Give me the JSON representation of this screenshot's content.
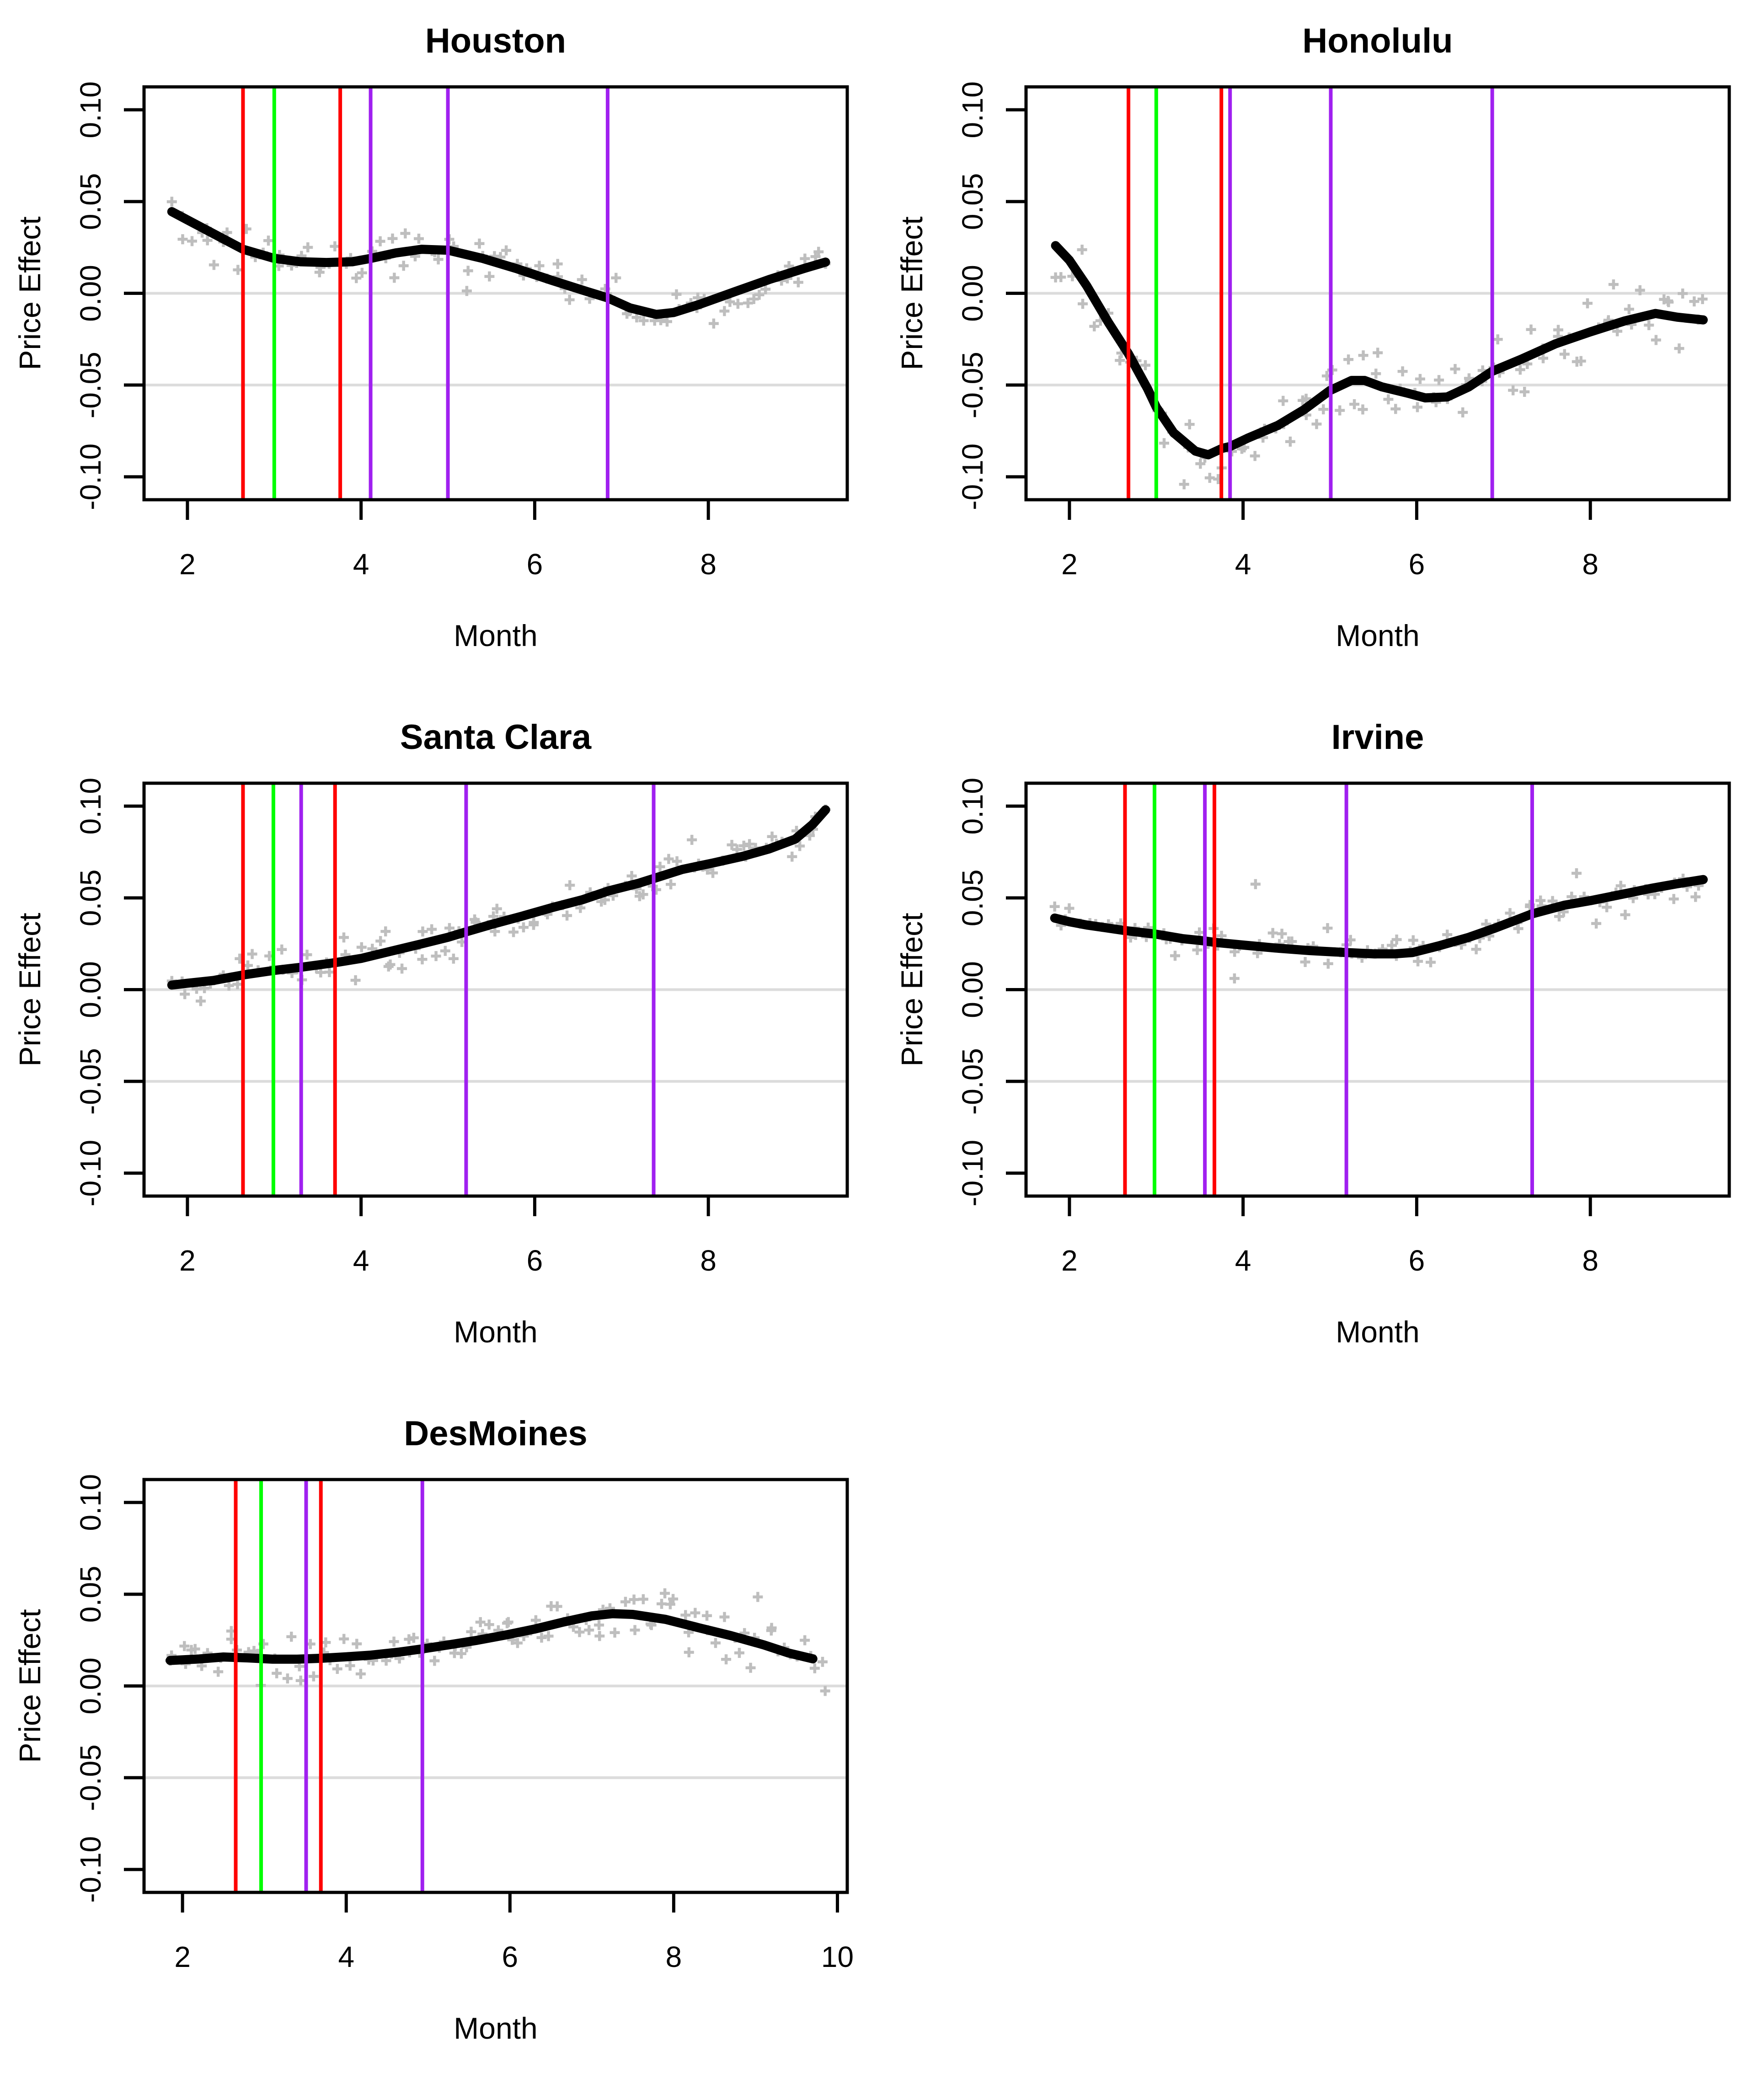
{
  "figure": {
    "rows": 3,
    "cols": 2,
    "background": "#ffffff"
  },
  "axes": {
    "xlabel": "Month",
    "ylabel": "Price Effect",
    "ytick_values": [
      0.1,
      0.05,
      0.0,
      -0.05,
      -0.1
    ],
    "ytick_labels": [
      "0.10",
      "0.05",
      "0.00",
      "-0.05",
      "-0.10"
    ],
    "ylim": [
      -0.1125,
      0.1125
    ],
    "gridlines_y": [
      0.0,
      -0.05
    ],
    "grid_on": true
  },
  "colors": {
    "curve": "#000000",
    "scatter": "#BEBEBE",
    "grid": "#DCDCDC",
    "axis": "#000000",
    "red": "#FF0000",
    "green": "#00FF00",
    "purple": "#A020F0"
  },
  "chart_data": [
    {
      "type": "line",
      "title": "Houston",
      "xlabel": "Month",
      "ylabel": "Price Effect",
      "xlim": [
        1.5,
        9.6
      ],
      "xticks": [
        2,
        4,
        6,
        8
      ],
      "xtick_labels": [
        "2",
        "4",
        "6",
        "8"
      ],
      "vlines": [
        {
          "x": 2.64,
          "color": "red"
        },
        {
          "x": 3.0,
          "color": "green"
        },
        {
          "x": 3.76,
          "color": "red"
        },
        {
          "x": 4.11,
          "color": "purple"
        },
        {
          "x": 5.0,
          "color": "purple"
        },
        {
          "x": 6.84,
          "color": "purple"
        }
      ],
      "curve": [
        [
          1.82,
          0.0445
        ],
        [
          2.0,
          0.04
        ],
        [
          2.3,
          0.0325
        ],
        [
          2.64,
          0.024
        ],
        [
          3.0,
          0.019
        ],
        [
          3.3,
          0.0172
        ],
        [
          3.6,
          0.0168
        ],
        [
          3.9,
          0.0172
        ],
        [
          4.11,
          0.019
        ],
        [
          4.4,
          0.022
        ],
        [
          4.7,
          0.024
        ],
        [
          5.0,
          0.0235
        ],
        [
          5.4,
          0.019
        ],
        [
          5.8,
          0.0133
        ],
        [
          6.2,
          0.007
        ],
        [
          6.6,
          0.001
        ],
        [
          6.84,
          -0.0025
        ],
        [
          7.1,
          -0.008
        ],
        [
          7.4,
          -0.0115
        ],
        [
          7.6,
          -0.0105
        ],
        [
          7.9,
          -0.006
        ],
        [
          8.3,
          0.0008
        ],
        [
          8.7,
          0.0075
        ],
        [
          9.1,
          0.0135
        ],
        [
          9.35,
          0.017
        ]
      ],
      "scatter": {
        "seed": 101,
        "n": 100,
        "sd": 0.006,
        "x_range": [
          1.82,
          9.35
        ]
      }
    },
    {
      "type": "line",
      "title": "Honolulu",
      "xlabel": "Month",
      "ylabel": "Price Effect",
      "xlim": [
        1.5,
        9.6
      ],
      "xticks": [
        2,
        4,
        6,
        8
      ],
      "xtick_labels": [
        "2",
        "4",
        "6",
        "8"
      ],
      "vlines": [
        {
          "x": 2.68,
          "color": "red"
        },
        {
          "x": 3.0,
          "color": "green"
        },
        {
          "x": 3.75,
          "color": "red"
        },
        {
          "x": 3.85,
          "color": "purple"
        },
        {
          "x": 5.01,
          "color": "purple"
        },
        {
          "x": 6.87,
          "color": "purple"
        }
      ],
      "curve": [
        [
          1.84,
          0.026
        ],
        [
          2.0,
          0.018
        ],
        [
          2.2,
          0.004
        ],
        [
          2.45,
          -0.016
        ],
        [
          2.68,
          -0.033
        ],
        [
          2.9,
          -0.052
        ],
        [
          3.0,
          -0.062
        ],
        [
          3.2,
          -0.076
        ],
        [
          3.45,
          -0.086
        ],
        [
          3.6,
          -0.088
        ],
        [
          3.76,
          -0.0845
        ],
        [
          3.85,
          -0.0835
        ],
        [
          4.05,
          -0.079
        ],
        [
          4.4,
          -0.072
        ],
        [
          4.7,
          -0.0635
        ],
        [
          5.0,
          -0.053
        ],
        [
          5.25,
          -0.0475
        ],
        [
          5.4,
          -0.0475
        ],
        [
          5.6,
          -0.051
        ],
        [
          5.9,
          -0.0545
        ],
        [
          6.1,
          -0.057
        ],
        [
          6.35,
          -0.0565
        ],
        [
          6.6,
          -0.051
        ],
        [
          6.87,
          -0.0425
        ],
        [
          7.2,
          -0.036
        ],
        [
          7.6,
          -0.0275
        ],
        [
          8.0,
          -0.021
        ],
        [
          8.4,
          -0.015
        ],
        [
          8.75,
          -0.011
        ],
        [
          9.0,
          -0.013
        ],
        [
          9.3,
          -0.0145
        ]
      ],
      "scatter": {
        "seed": 202,
        "n": 105,
        "sd": 0.009,
        "x_range": [
          1.84,
          9.3
        ]
      }
    },
    {
      "type": "line",
      "title": "Santa Clara",
      "xlabel": "Month",
      "ylabel": "Price Effect",
      "xlim": [
        1.5,
        9.6
      ],
      "xticks": [
        2,
        4,
        6,
        8
      ],
      "xtick_labels": [
        "2",
        "4",
        "6",
        "8"
      ],
      "vlines": [
        {
          "x": 2.64,
          "color": "red"
        },
        {
          "x": 2.99,
          "color": "green"
        },
        {
          "x": 3.31,
          "color": "purple"
        },
        {
          "x": 3.7,
          "color": "red"
        },
        {
          "x": 5.21,
          "color": "purple"
        },
        {
          "x": 7.37,
          "color": "purple"
        }
      ],
      "curve": [
        [
          1.82,
          0.0025
        ],
        [
          2.0,
          0.0035
        ],
        [
          2.3,
          0.005
        ],
        [
          2.64,
          0.008
        ],
        [
          3.0,
          0.0105
        ],
        [
          3.31,
          0.0122
        ],
        [
          3.7,
          0.0147
        ],
        [
          4.0,
          0.017
        ],
        [
          4.35,
          0.021
        ],
        [
          4.7,
          0.025
        ],
        [
          5.0,
          0.0285
        ],
        [
          5.21,
          0.0315
        ],
        [
          5.5,
          0.0355
        ],
        [
          5.85,
          0.04
        ],
        [
          6.2,
          0.0447
        ],
        [
          6.55,
          0.049
        ],
        [
          6.85,
          0.0538
        ],
        [
          7.2,
          0.058
        ],
        [
          7.4,
          0.061
        ],
        [
          7.7,
          0.0655
        ],
        [
          8.05,
          0.069
        ],
        [
          8.4,
          0.0727
        ],
        [
          8.7,
          0.0767
        ],
        [
          9.0,
          0.082
        ],
        [
          9.2,
          0.09
        ],
        [
          9.35,
          0.098
        ]
      ],
      "scatter": {
        "seed": 303,
        "n": 110,
        "sd": 0.005,
        "x_range": [
          1.82,
          9.35
        ]
      }
    },
    {
      "type": "line",
      "title": "Irvine",
      "xlabel": "Month",
      "ylabel": "Price Effect",
      "xlim": [
        1.5,
        9.6
      ],
      "xticks": [
        2,
        4,
        6,
        8
      ],
      "xtick_labels": [
        "2",
        "4",
        "6",
        "8"
      ],
      "vlines": [
        {
          "x": 2.64,
          "color": "red"
        },
        {
          "x": 2.98,
          "color": "green"
        },
        {
          "x": 3.56,
          "color": "purple"
        },
        {
          "x": 3.67,
          "color": "red"
        },
        {
          "x": 5.19,
          "color": "purple"
        },
        {
          "x": 7.33,
          "color": "purple"
        }
      ],
      "curve": [
        [
          1.83,
          0.039
        ],
        [
          2.0,
          0.037
        ],
        [
          2.2,
          0.0352
        ],
        [
          2.64,
          0.0322
        ],
        [
          3.0,
          0.0302
        ],
        [
          3.3,
          0.0278
        ],
        [
          3.56,
          0.0265
        ],
        [
          3.67,
          0.0258
        ],
        [
          4.0,
          0.0243
        ],
        [
          4.37,
          0.0227
        ],
        [
          4.76,
          0.0213
        ],
        [
          5.19,
          0.0202
        ],
        [
          5.5,
          0.0195
        ],
        [
          5.75,
          0.0195
        ],
        [
          5.95,
          0.0202
        ],
        [
          6.25,
          0.0238
        ],
        [
          6.6,
          0.0285
        ],
        [
          6.9,
          0.0335
        ],
        [
          7.33,
          0.0413
        ],
        [
          7.7,
          0.046
        ],
        [
          8.0,
          0.0485
        ],
        [
          8.35,
          0.0518
        ],
        [
          8.7,
          0.0552
        ],
        [
          9.0,
          0.0577
        ],
        [
          9.3,
          0.06
        ]
      ],
      "scatter": {
        "seed": 404,
        "n": 100,
        "sd": 0.0058,
        "x_range": [
          1.83,
          9.3
        ]
      }
    },
    {
      "type": "line",
      "title": "DesMoines",
      "xlabel": "Month",
      "ylabel": "Price Effect",
      "xlim": [
        1.53,
        10.12
      ],
      "xticks": [
        2,
        4,
        6,
        8,
        10
      ],
      "xtick_labels": [
        "2",
        "4",
        "6",
        "8",
        "10"
      ],
      "vlines": [
        {
          "x": 2.65,
          "color": "red"
        },
        {
          "x": 2.96,
          "color": "green"
        },
        {
          "x": 3.51,
          "color": "purple"
        },
        {
          "x": 3.69,
          "color": "red"
        },
        {
          "x": 4.93,
          "color": "purple"
        }
      ],
      "curve": [
        [
          1.85,
          0.0139
        ],
        [
          2.2,
          0.0147
        ],
        [
          2.5,
          0.0158
        ],
        [
          2.8,
          0.0153
        ],
        [
          3.1,
          0.0146
        ],
        [
          3.4,
          0.0146
        ],
        [
          3.7,
          0.0151
        ],
        [
          4.0,
          0.0159
        ],
        [
          4.3,
          0.0168
        ],
        [
          4.65,
          0.0185
        ],
        [
          4.93,
          0.0202
        ],
        [
          5.25,
          0.0224
        ],
        [
          5.6,
          0.0249
        ],
        [
          5.95,
          0.0278
        ],
        [
          6.3,
          0.031
        ],
        [
          6.65,
          0.0348
        ],
        [
          7.0,
          0.0382
        ],
        [
          7.25,
          0.0394
        ],
        [
          7.5,
          0.039
        ],
        [
          7.9,
          0.0363
        ],
        [
          8.3,
          0.0318
        ],
        [
          8.7,
          0.0274
        ],
        [
          9.1,
          0.0224
        ],
        [
          9.4,
          0.018
        ],
        [
          9.7,
          0.0148
        ]
      ],
      "scatter": {
        "seed": 505,
        "n": 115,
        "sd": 0.0068,
        "x_range": [
          1.85,
          9.85
        ]
      }
    }
  ]
}
